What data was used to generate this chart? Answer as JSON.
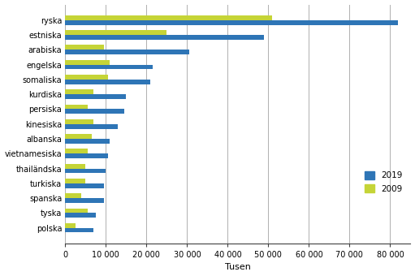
{
  "categories": [
    "ryska",
    "estniska",
    "arabiska",
    "engelska",
    "somaliska",
    "kurdiska",
    "persiska",
    "kinesiska",
    "albanska",
    "vietnamesiska",
    "thailändska",
    "turkiska",
    "spanska",
    "tyska",
    "polska"
  ],
  "values_2019": [
    82000,
    49000,
    30500,
    21500,
    21000,
    15000,
    14500,
    13000,
    11000,
    10500,
    10000,
    9500,
    9500,
    7500,
    7000
  ],
  "values_2009": [
    51000,
    25000,
    9500,
    11000,
    10500,
    7000,
    5500,
    7000,
    6500,
    5500,
    5000,
    5000,
    4000,
    5500,
    2500
  ],
  "color_2019": "#2e75b6",
  "color_2009": "#c5d437",
  "xlabel": "Tusen",
  "xlim": [
    0,
    85000
  ],
  "xticks": [
    0,
    10000,
    20000,
    30000,
    40000,
    50000,
    60000,
    70000,
    80000
  ],
  "xticklabels": [
    "0",
    "10 000",
    "20 000",
    "30 000",
    "40 000",
    "50 000",
    "60 000",
    "70 000",
    "80 000"
  ],
  "legend_labels": [
    "2019",
    "2009"
  ],
  "background_color": "#ffffff",
  "grid_color": "#b0b0b0",
  "bar_height": 0.32,
  "figsize": [
    5.11,
    3.4
  ],
  "dpi": 100
}
